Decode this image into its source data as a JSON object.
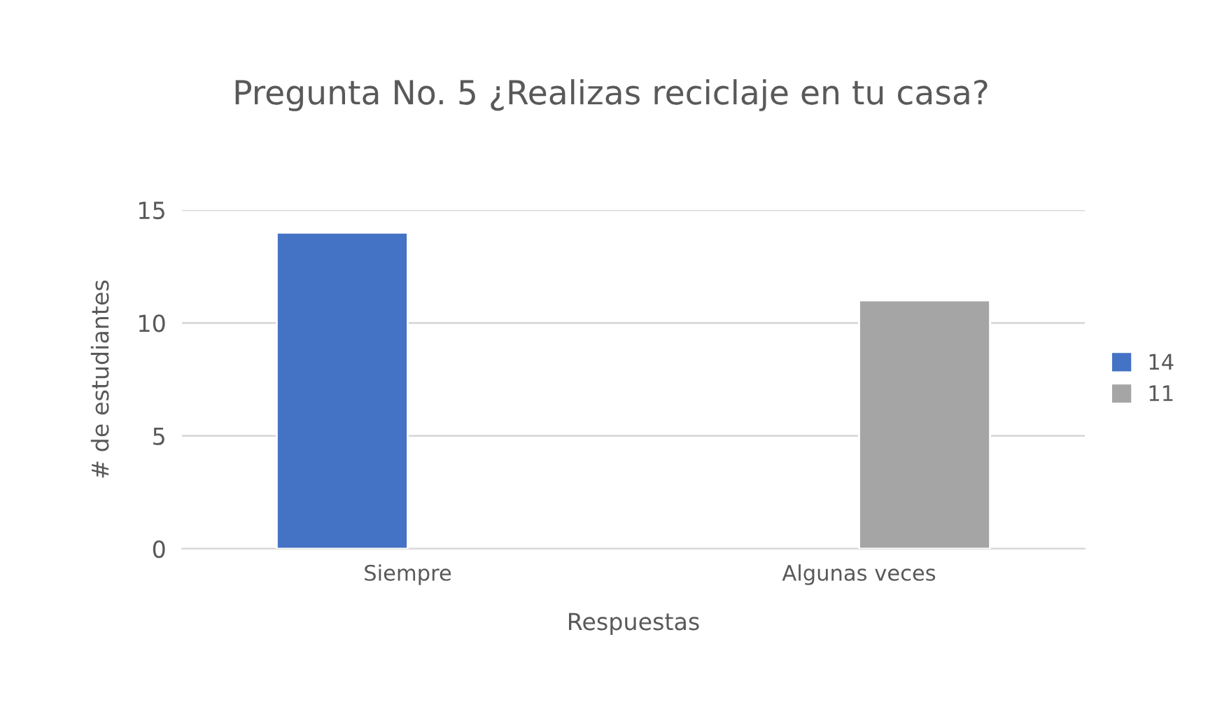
{
  "chart_data": {
    "type": "bar",
    "title": "Pregunta No. 5 ¿Realizas reciclaje en tu casa?",
    "xlabel": "Respuestas",
    "ylabel": "# de estudiantes",
    "categories": [
      "Siempre",
      "Algunas veces"
    ],
    "series": [
      {
        "name": "14",
        "color": "#4472c4",
        "values": [
          14,
          null
        ]
      },
      {
        "name": "11",
        "color": "#a5a5a5",
        "values": [
          null,
          11
        ]
      }
    ],
    "ylim": [
      0,
      15
    ],
    "yticks": [
      0,
      5,
      10,
      15
    ],
    "grid": "y",
    "legend": "right"
  }
}
